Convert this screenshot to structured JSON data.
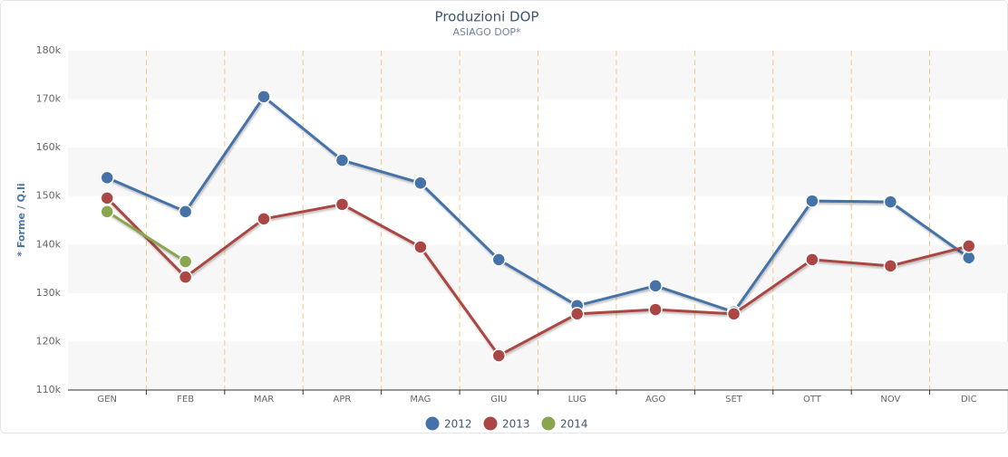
{
  "chart_data": {
    "type": "line",
    "title": "Produzioni DOP",
    "subtitle": "ASIAGO DOP*",
    "ylabel": "* Forme / Q.li",
    "categories": [
      "GEN",
      "FEB",
      "MAR",
      "APR",
      "MAG",
      "GIU",
      "LUG",
      "AGO",
      "SET",
      "OTT",
      "NOV",
      "DIC"
    ],
    "series": [
      {
        "name": "2012",
        "color": "#4572a7",
        "values": [
          153800,
          146800,
          170500,
          157400,
          152700,
          136900,
          127400,
          131500,
          126100,
          149000,
          148800,
          137300
        ]
      },
      {
        "name": "2013",
        "color": "#aa4643",
        "values": [
          149600,
          133300,
          145300,
          148300,
          139500,
          117100,
          125700,
          126600,
          125700,
          136900,
          135600,
          139700
        ]
      },
      {
        "name": "2014",
        "color": "#89a54e",
        "values": [
          146800,
          136500,
          null,
          null,
          null,
          null,
          null,
          null,
          null,
          null,
          null,
          null
        ]
      }
    ],
    "ylim": [
      110000,
      180000
    ],
    "yticks": [
      {
        "value": 110000,
        "label": "110k"
      },
      {
        "value": 120000,
        "label": "120k"
      },
      {
        "value": 130000,
        "label": "130k"
      },
      {
        "value": 140000,
        "label": "140k"
      },
      {
        "value": 150000,
        "label": "150k"
      },
      {
        "value": 160000,
        "label": "160k"
      },
      {
        "value": 170000,
        "label": "170k"
      },
      {
        "value": 180000,
        "label": "180k"
      }
    ],
    "legend": "bottom"
  }
}
